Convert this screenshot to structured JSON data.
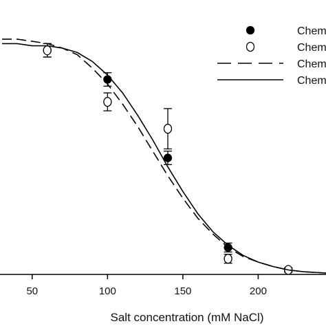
{
  "chart_data": {
    "type": "scatter",
    "title": "",
    "xlabel": "Salt concentration (mM NaCl)",
    "ylabel": "",
    "xlim": [
      30,
      245
    ],
    "ylim": [
      0,
      1.2
    ],
    "x_ticks": [
      50,
      100,
      150,
      200
    ],
    "x_tick_labels": [
      "50",
      "100",
      "150",
      "200"
    ],
    "grid": false,
    "legend_position": "top-right",
    "series": [
      {
        "name": "Chem",
        "kind": "points",
        "marker": "filled-circle",
        "color": "#000000",
        "x": [
          60,
          100,
          140,
          180,
          220
        ],
        "y": [
          1.0,
          0.87,
          0.52,
          0.12,
          0.02
        ],
        "err": [
          0.03,
          0.03,
          0.03,
          0.02,
          0.01
        ]
      },
      {
        "name": "Chem",
        "kind": "points",
        "marker": "open-circle",
        "color": "#000000",
        "x": [
          60,
          100,
          140,
          180,
          220
        ],
        "y": [
          1.0,
          0.77,
          0.65,
          0.07,
          0.02
        ],
        "err": [
          0.03,
          0.04,
          0.09,
          0.02,
          0.01
        ]
      },
      {
        "name": "Chem",
        "kind": "line",
        "style": "dashed",
        "color": "#000000",
        "x": [
          30,
          40,
          50,
          60,
          70,
          80,
          90,
          100,
          110,
          120,
          130,
          140,
          150,
          160,
          170,
          180,
          190,
          200,
          210,
          220,
          230,
          245
        ],
        "y": [
          1.05,
          1.05,
          1.04,
          1.03,
          1.01,
          0.98,
          0.92,
          0.85,
          0.76,
          0.66,
          0.55,
          0.44,
          0.34,
          0.25,
          0.18,
          0.12,
          0.08,
          0.055,
          0.035,
          0.02,
          0.012,
          0.006
        ]
      },
      {
        "name": "Chem",
        "kind": "line",
        "style": "solid",
        "color": "#000000",
        "x": [
          30,
          40,
          50,
          60,
          70,
          80,
          90,
          100,
          110,
          120,
          130,
          140,
          150,
          160,
          170,
          180,
          190,
          200,
          210,
          220,
          230,
          245
        ],
        "y": [
          1.03,
          1.03,
          1.02,
          1.02,
          1.01,
          0.99,
          0.95,
          0.89,
          0.81,
          0.71,
          0.6,
          0.48,
          0.37,
          0.27,
          0.19,
          0.13,
          0.085,
          0.055,
          0.035,
          0.02,
          0.012,
          0.006
        ]
      }
    ]
  }
}
